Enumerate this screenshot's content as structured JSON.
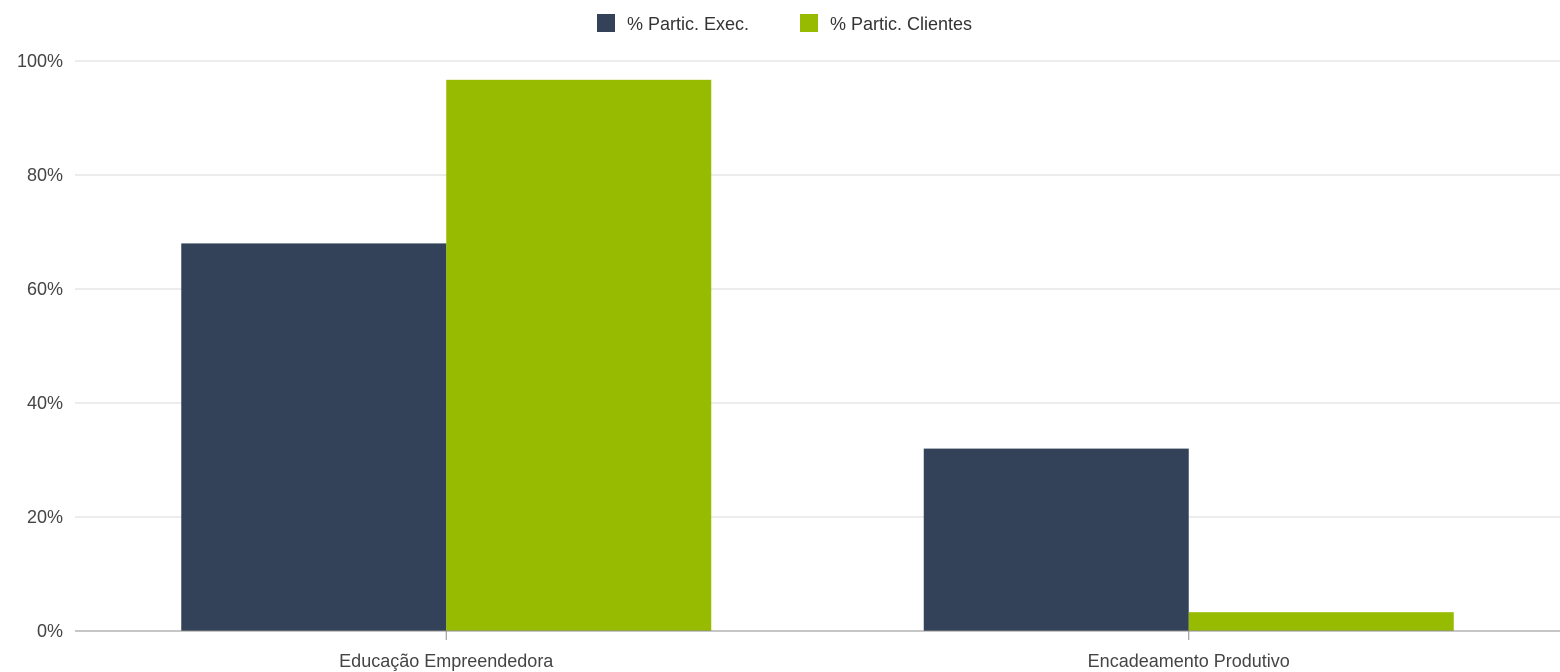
{
  "chart_data": {
    "type": "bar",
    "categories": [
      "Educação Empreendedora",
      "Encadeamento Produtivo"
    ],
    "series": [
      {
        "name": "% Partic. Exec.",
        "values": [
          68,
          32
        ],
        "color": "#344259"
      },
      {
        "name": "% Partic. Clientes",
        "values": [
          96.7,
          3.3
        ],
        "color": "#97BB00"
      }
    ],
    "y_ticks": [
      {
        "value": 0,
        "label": "0%"
      },
      {
        "value": 20,
        "label": "20%"
      },
      {
        "value": 40,
        "label": "40%"
      },
      {
        "value": 60,
        "label": "60%"
      },
      {
        "value": 80,
        "label": "80%"
      },
      {
        "value": 100,
        "label": "100%"
      }
    ],
    "ylim": [
      0,
      100
    ],
    "grid": true,
    "legend_position": "top-center",
    "colors": {
      "grid": "#d9d9d9",
      "axis": "#8c8c8c"
    }
  }
}
